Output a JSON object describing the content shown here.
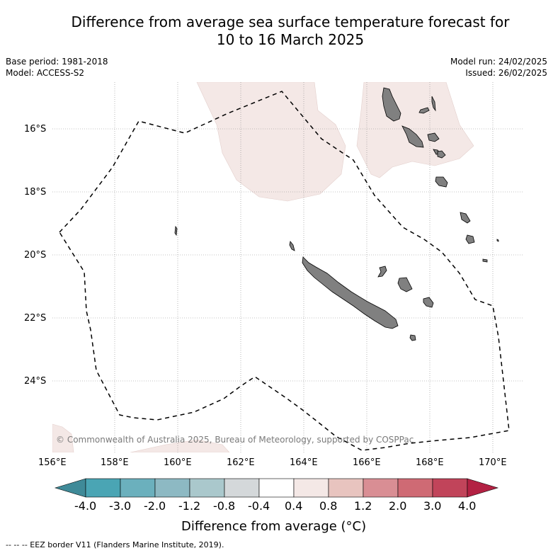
{
  "title": {
    "line1": "Difference from average sea surface temperature forecast for",
    "line2": "10 to 16 March 2025"
  },
  "meta": {
    "base_period": "Base period: 1981-2018",
    "model": "Model: ACCESS-S2",
    "model_run": "Model run: 24/02/2025",
    "issued": "Issued: 26/02/2025"
  },
  "map": {
    "lat_labels": [
      "16°S",
      "18°S",
      "20°S",
      "22°S",
      "24°S"
    ],
    "lon_labels": [
      "156°E",
      "158°E",
      "160°E",
      "162°E",
      "164°E",
      "166°E",
      "168°E",
      "170°E"
    ],
    "copyright": "© Commonwealth of Australia 2025, Bureau of Meteorology, supported by COSPPac",
    "colors": {
      "land": "#808080",
      "anomaly_0_4_to_0_8": "#f4e8e6",
      "eez_line": "#000000"
    }
  },
  "colorbar": {
    "ticks": [
      "-4.0",
      "-3.0",
      "-2.0",
      "-1.2",
      "-0.8",
      "-0.4",
      "0.4",
      "0.8",
      "1.2",
      "2.0",
      "3.0",
      "4.0"
    ],
    "colors": [
      "#3f8a98",
      "#4aa5b4",
      "#6bb0bd",
      "#8db9c3",
      "#aac8cc",
      "#d4d8da",
      "#ffffff",
      "#f4e8e6",
      "#e8c4bf",
      "#d98e94",
      "#cf6a74",
      "#c1445a",
      "#b32143"
    ],
    "label": "Difference from average (°C)"
  },
  "footer": {
    "eez_note": "--  --  -- EEZ border V11 (Flanders Marine Institute, 2019)."
  }
}
